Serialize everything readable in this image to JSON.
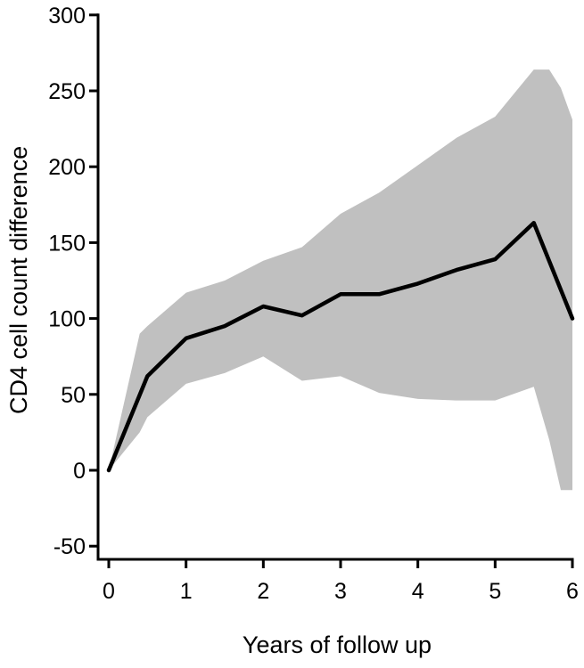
{
  "chart_data": {
    "type": "line",
    "title": "",
    "xlabel": "Years of follow up",
    "ylabel": "CD4 cell count difference",
    "xlim": [
      0,
      6
    ],
    "ylim": [
      -60,
      300
    ],
    "x_ticks": [
      0,
      1,
      2,
      3,
      4,
      5,
      6
    ],
    "y_ticks": [
      -50,
      0,
      50,
      100,
      150,
      200,
      250,
      300
    ],
    "grid": false,
    "legend": "none",
    "series": [
      {
        "x": [
          0,
          0.5,
          1,
          1.5,
          2,
          2.5,
          3,
          3.5,
          4,
          4.5,
          5,
          5.5,
          6
        ],
        "values": [
          0,
          62,
          87,
          95,
          108,
          102,
          116,
          116,
          123,
          132,
          139,
          163,
          100
        ],
        "color": "#000000"
      }
    ],
    "confidence_band": {
      "x": [
        0,
        0.4,
        0.5,
        1,
        1.5,
        2,
        2.5,
        3,
        3.5,
        4,
        4.5,
        5,
        5.5,
        5.7,
        5.85,
        6
      ],
      "upper": [
        0,
        90,
        95,
        117,
        125,
        138,
        147,
        169,
        183,
        201,
        219,
        233,
        264,
        264,
        252,
        231
      ],
      "lower": [
        0,
        25,
        35,
        57,
        64,
        75,
        59,
        62,
        51,
        47,
        46,
        46,
        55,
        20,
        -13,
        -13
      ],
      "color": "#c0c0c0"
    }
  }
}
